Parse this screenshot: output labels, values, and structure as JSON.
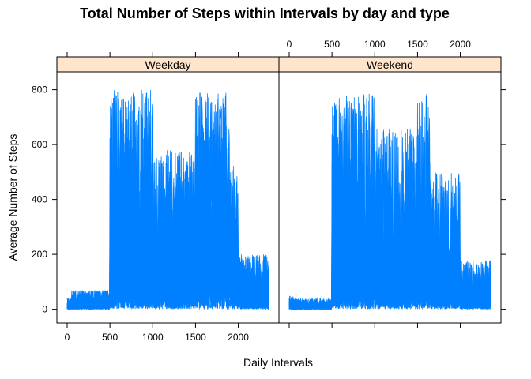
{
  "chart_data": {
    "type": "line",
    "title": "Total Number of Steps within Intervals by day and type",
    "xlabel": "Daily Intervals",
    "ylabel": "Average Number of Steps",
    "xlim": [
      -120,
      2475
    ],
    "ylim": [
      -50,
      865
    ],
    "x_ticks": [
      0,
      500,
      1000,
      1500,
      2000
    ],
    "y_ticks": [
      0,
      200,
      400,
      600,
      800
    ],
    "panel_layout": "two panels side by side, shared axes, x tick labels bottom-left and top-right",
    "strip_color": "#ffe5cc",
    "line_color": "#0080ff",
    "panels": [
      {
        "name": "Weekday",
        "segments": [
          {
            "x_start": 0,
            "x_end": 55,
            "y_range": [
              0,
              40
            ]
          },
          {
            "x_start": 55,
            "x_end": 500,
            "y_range": [
              0,
              70
            ]
          },
          {
            "x_start": 500,
            "x_end": 1000,
            "y_range": [
              0,
              800
            ]
          },
          {
            "x_start": 1000,
            "x_end": 1500,
            "y_range": [
              0,
              580
            ]
          },
          {
            "x_start": 1500,
            "x_end": 1900,
            "y_range": [
              0,
              790
            ]
          },
          {
            "x_start": 1900,
            "x_end": 2000,
            "y_range": [
              0,
              530
            ]
          },
          {
            "x_start": 2000,
            "x_end": 2355,
            "y_range": [
              0,
              200
            ]
          }
        ]
      },
      {
        "name": "Weekend",
        "segments": [
          {
            "x_start": 0,
            "x_end": 55,
            "y_range": [
              0,
              50
            ]
          },
          {
            "x_start": 55,
            "x_end": 500,
            "y_range": [
              0,
              40
            ]
          },
          {
            "x_start": 500,
            "x_end": 1000,
            "y_range": [
              0,
              790
            ]
          },
          {
            "x_start": 1000,
            "x_end": 1500,
            "y_range": [
              0,
              660
            ]
          },
          {
            "x_start": 1500,
            "x_end": 1650,
            "y_range": [
              0,
              790
            ]
          },
          {
            "x_start": 1650,
            "x_end": 2000,
            "y_range": [
              0,
              500
            ]
          },
          {
            "x_start": 2000,
            "x_end": 2355,
            "y_range": [
              0,
              180
            ]
          }
        ]
      }
    ]
  }
}
